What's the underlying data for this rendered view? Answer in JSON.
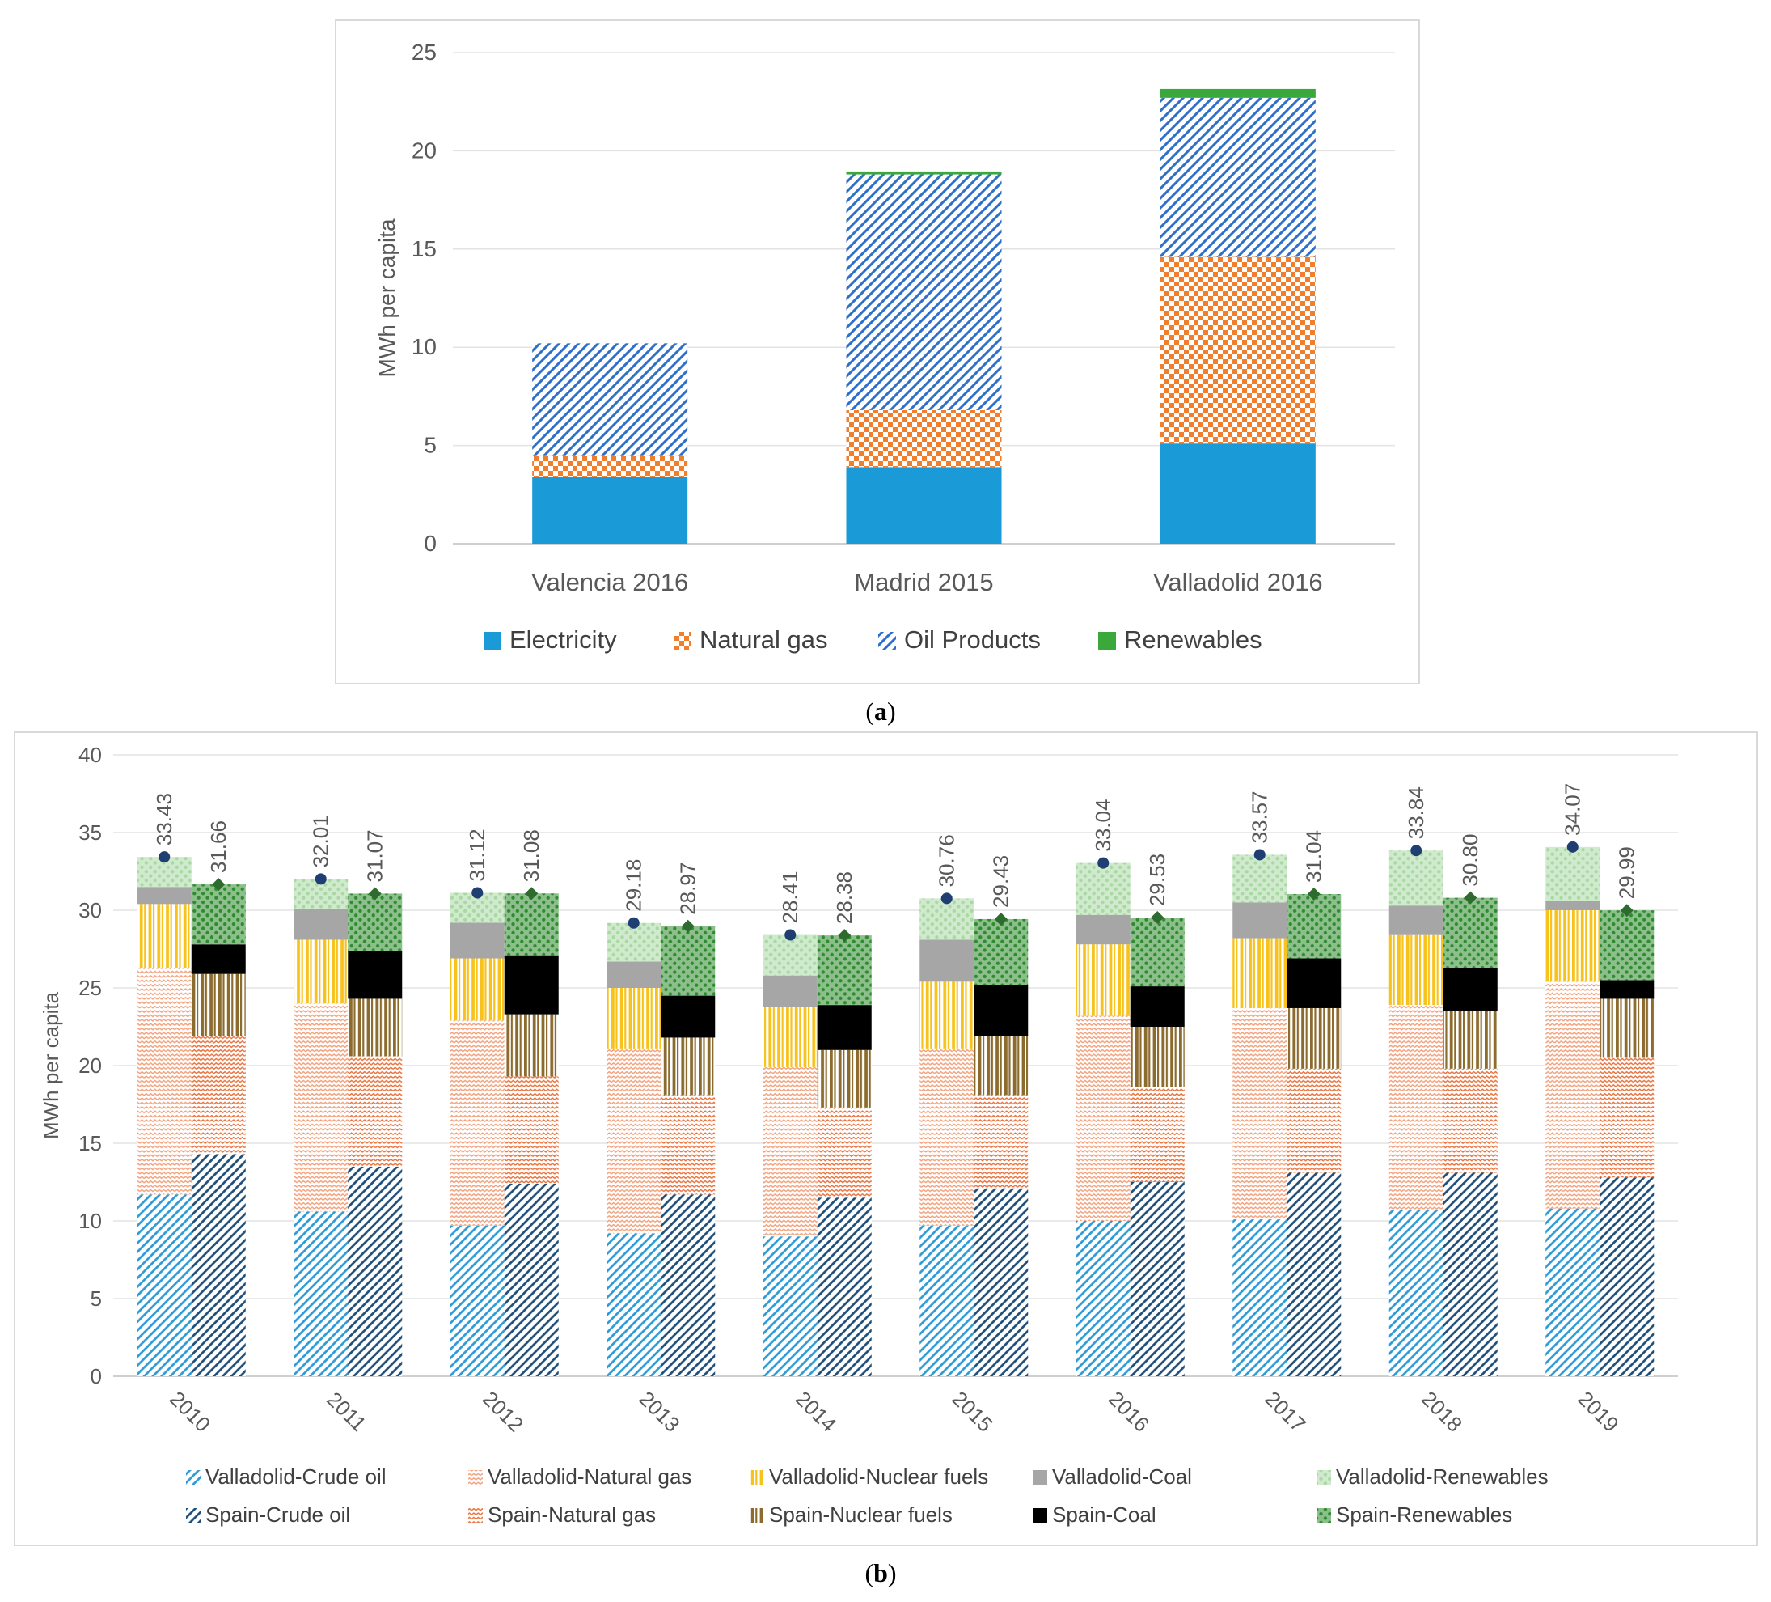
{
  "chart_data": [
    {
      "id": "a",
      "type": "bar",
      "stacked": true,
      "caption": {
        "open": "(",
        "letter": "a",
        "close": ")"
      },
      "categories": [
        "Valencia 2016",
        "Madrid 2015",
        "Valladolid 2016"
      ],
      "ylabel": "MWh per capita",
      "ylim": [
        0,
        25
      ],
      "yticks": [
        "0",
        "5",
        "10",
        "15",
        "20",
        "25"
      ],
      "grid": true,
      "legend_position": "bottom",
      "series": [
        {
          "name": "Electricity",
          "color": "#1a9ad6",
          "pattern": "solid",
          "values": [
            3.4,
            3.9,
            5.1
          ]
        },
        {
          "name": "Natural gas",
          "color": "#f07e2c",
          "pattern": "checker",
          "values": [
            1.1,
            2.9,
            9.5
          ]
        },
        {
          "name": "Oil Products",
          "color": "#2e6fc9",
          "pattern": "diagonal-stripes",
          "values": [
            5.7,
            12.0,
            8.1
          ]
        },
        {
          "name": "Renewables",
          "color": "#3aa83a",
          "pattern": "solid",
          "values": [
            0.0,
            0.15,
            0.45
          ]
        }
      ]
    },
    {
      "id": "b",
      "type": "bar",
      "stacked": true,
      "grouped": true,
      "caption": {
        "open": "(",
        "letter": "b",
        "close": ")"
      },
      "categories": [
        "2010",
        "2011",
        "2012",
        "2013",
        "2014",
        "2015",
        "2016",
        "2017",
        "2018",
        "2019"
      ],
      "ylabel": "MWh per capita",
      "ylim": [
        0,
        40
      ],
      "yticks": [
        "0",
        "5",
        "10",
        "15",
        "20",
        "25",
        "30",
        "35",
        "40"
      ],
      "grid": true,
      "legend_position": "bottom",
      "groups": [
        "Valladolid",
        "Spain"
      ],
      "series": [
        {
          "name": "Valladolid-Crude oil",
          "group": "Valladolid",
          "color": "#2e9ad6",
          "pattern": "diagonal-stripes",
          "values": [
            11.7,
            10.6,
            9.7,
            9.2,
            9.0,
            9.7,
            10.0,
            10.1,
            10.7,
            10.8
          ]
        },
        {
          "name": "Valladolid-Natural gas",
          "group": "Valladolid",
          "color": "#f2a07a",
          "pattern": "zigzag",
          "values": [
            14.6,
            13.4,
            13.2,
            11.9,
            10.9,
            11.4,
            13.2,
            13.6,
            13.2,
            14.6
          ]
        },
        {
          "name": "Valladolid-Nuclear fuels",
          "group": "Valladolid",
          "color": "#f7c21c",
          "pattern": "vertical-stripes",
          "values": [
            4.1,
            4.1,
            4.0,
            3.9,
            3.9,
            4.3,
            4.6,
            4.5,
            4.5,
            4.6
          ]
        },
        {
          "name": "Valladolid-Coal",
          "group": "Valladolid",
          "color": "#a6a6a6",
          "pattern": "solid",
          "values": [
            1.1,
            2.0,
            2.3,
            1.7,
            2.0,
            2.7,
            1.9,
            2.3,
            1.9,
            0.6
          ]
        },
        {
          "name": "Valladolid-Renewables",
          "group": "Valladolid",
          "color": "#a9d8a3",
          "pattern": "dots",
          "values": [
            1.93,
            1.91,
            1.92,
            2.48,
            2.61,
            2.66,
            3.34,
            3.07,
            3.54,
            3.47
          ]
        },
        {
          "name": "Spain-Crude oil",
          "group": "Spain",
          "color": "#1f4e79",
          "pattern": "diagonal-stripes",
          "values": [
            14.3,
            13.5,
            12.4,
            11.7,
            11.5,
            12.1,
            12.5,
            13.1,
            13.1,
            12.8
          ]
        },
        {
          "name": "Spain-Natural gas",
          "group": "Spain",
          "color": "#e8703a",
          "pattern": "zigzag",
          "values": [
            7.6,
            7.1,
            6.9,
            6.4,
            5.8,
            6.0,
            6.1,
            6.7,
            6.7,
            7.7
          ]
        },
        {
          "name": "Spain-Nuclear fuels",
          "group": "Spain",
          "color": "#8c6b2e",
          "pattern": "vertical-stripes",
          "values": [
            4.0,
            3.7,
            4.0,
            3.7,
            3.7,
            3.8,
            3.9,
            3.9,
            3.7,
            3.8
          ]
        },
        {
          "name": "Spain-Coal",
          "group": "Spain",
          "color": "#000000",
          "pattern": "solid",
          "values": [
            1.9,
            3.1,
            3.8,
            2.7,
            2.9,
            3.3,
            2.6,
            3.2,
            2.8,
            1.2
          ]
        },
        {
          "name": "Spain-Renewables",
          "group": "Spain",
          "color": "#2e8b2e",
          "pattern": "dots",
          "values": [
            3.86,
            3.67,
            3.98,
            4.47,
            4.48,
            4.23,
            4.43,
            4.14,
            4.5,
            4.49
          ]
        }
      ],
      "totals": {
        "Valladolid": [
          "33.43",
          "32.01",
          "31.12",
          "29.18",
          "28.41",
          "30.76",
          "33.04",
          "33.57",
          "33.84",
          "34.07"
        ],
        "Spain": [
          "31.66",
          "31.07",
          "31.08",
          "28.97",
          "28.38",
          "29.43",
          "29.53",
          "31.04",
          "30.80",
          "29.99"
        ]
      },
      "marker_colors": {
        "Valladolid": "#1f3f73",
        "Spain": "#2e6b2e"
      }
    }
  ]
}
